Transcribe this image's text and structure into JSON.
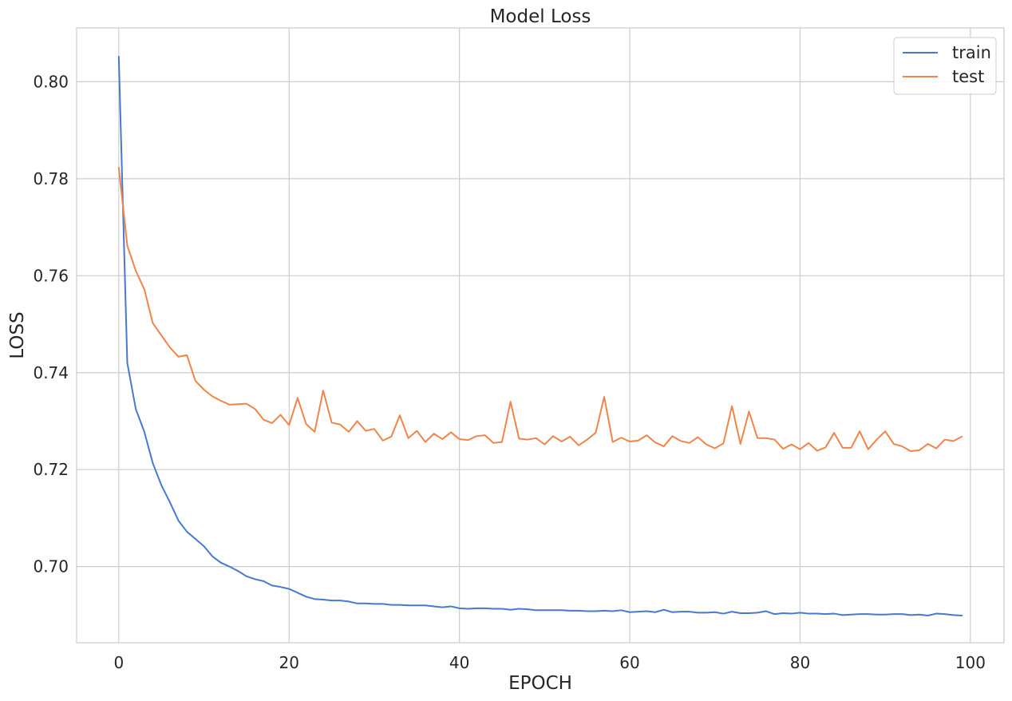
{
  "chart_data": {
    "type": "line",
    "title": "Model Loss",
    "xlabel": "EPOCH",
    "ylabel": "LOSS",
    "xlim": [
      -4.95,
      103.95
    ],
    "ylim": [
      0.6843,
      0.8111
    ],
    "x_ticks": [
      0,
      20,
      40,
      60,
      80,
      100
    ],
    "y_ticks": [
      0.7,
      0.72,
      0.74,
      0.76,
      0.78,
      0.8
    ],
    "y_tick_labels": [
      "0.70",
      "0.72",
      "0.74",
      "0.76",
      "0.78",
      "0.80"
    ],
    "grid": true,
    "legend_position": "top-right",
    "series": [
      {
        "name": "train",
        "color": "#4878d0",
        "values": [
          0.8052,
          0.742,
          0.7325,
          0.7278,
          0.7213,
          0.7168,
          0.7133,
          0.7095,
          0.7072,
          0.7057,
          0.7042,
          0.7021,
          0.7008,
          0.7,
          0.6991,
          0.698,
          0.6974,
          0.697,
          0.6961,
          0.6958,
          0.6954,
          0.6946,
          0.6938,
          0.6933,
          0.6932,
          0.693,
          0.693,
          0.6928,
          0.6924,
          0.6924,
          0.6923,
          0.6923,
          0.6921,
          0.6921,
          0.692,
          0.692,
          0.692,
          0.6918,
          0.6916,
          0.6918,
          0.6914,
          0.6913,
          0.6914,
          0.6914,
          0.6913,
          0.6913,
          0.6911,
          0.6913,
          0.6912,
          0.691,
          0.691,
          0.691,
          0.691,
          0.6909,
          0.6909,
          0.6908,
          0.6908,
          0.6909,
          0.6908,
          0.691,
          0.6906,
          0.6907,
          0.6908,
          0.6906,
          0.6911,
          0.6906,
          0.6907,
          0.6907,
          0.6905,
          0.6905,
          0.6906,
          0.6903,
          0.6907,
          0.6904,
          0.6904,
          0.6905,
          0.6908,
          0.6902,
          0.6904,
          0.6903,
          0.6905,
          0.6903,
          0.6903,
          0.6902,
          0.6903,
          0.69,
          0.6901,
          0.6902,
          0.6902,
          0.6901,
          0.6901,
          0.6902,
          0.6902,
          0.69,
          0.6901,
          0.6899,
          0.6903,
          0.6902,
          0.69,
          0.6899
        ]
      },
      {
        "name": "test",
        "color": "#ee854a",
        "values": [
          0.7823,
          0.7662,
          0.761,
          0.7572,
          0.7502,
          0.7477,
          0.7452,
          0.7433,
          0.7436,
          0.7383,
          0.7365,
          0.7351,
          0.7342,
          0.7334,
          0.7335,
          0.7336,
          0.7325,
          0.7303,
          0.7296,
          0.7313,
          0.7292,
          0.7348,
          0.7294,
          0.7278,
          0.7363,
          0.7297,
          0.7293,
          0.7278,
          0.73,
          0.728,
          0.7284,
          0.726,
          0.7268,
          0.7312,
          0.7265,
          0.728,
          0.7257,
          0.7274,
          0.7263,
          0.7277,
          0.7263,
          0.7261,
          0.7269,
          0.7271,
          0.7255,
          0.7257,
          0.734,
          0.7264,
          0.7262,
          0.7265,
          0.7252,
          0.7269,
          0.7258,
          0.7268,
          0.725,
          0.7262,
          0.7276,
          0.735,
          0.7257,
          0.7266,
          0.7258,
          0.726,
          0.7271,
          0.7256,
          0.7248,
          0.7269,
          0.7259,
          0.7255,
          0.7267,
          0.7252,
          0.7244,
          0.7254,
          0.7331,
          0.7253,
          0.732,
          0.7265,
          0.7265,
          0.7262,
          0.7243,
          0.7252,
          0.7242,
          0.7255,
          0.7239,
          0.7246,
          0.7276,
          0.7245,
          0.7245,
          0.7279,
          0.7242,
          0.7262,
          0.7279,
          0.7253,
          0.7248,
          0.7238,
          0.724,
          0.7253,
          0.7244,
          0.7262,
          0.7259,
          0.7268
        ]
      }
    ]
  }
}
